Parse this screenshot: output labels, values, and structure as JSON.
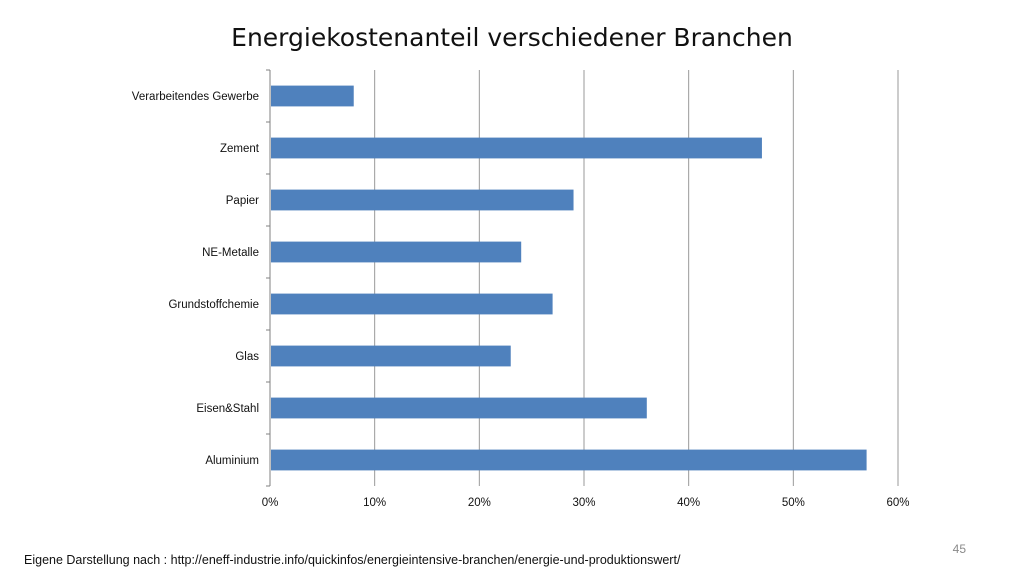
{
  "slide": {
    "source_note": "Eigene Darstellung nach : http://eneff-industrie.info/quickinfos/energieintensive-branchen/energie-und-produktionswert/",
    "page_number": "45"
  },
  "chart_data": {
    "type": "bar",
    "orientation": "horizontal",
    "title": "Energiekostenanteil verschiedener Branchen",
    "categories": [
      "Verarbeitendes Gewerbe",
      "Zement",
      "Papier",
      "NE-Metalle",
      "Grundstoffchemie",
      "Glas",
      "Eisen&Stahl",
      "Aluminium"
    ],
    "values": [
      8,
      47,
      29,
      24,
      27,
      23,
      36,
      57
    ],
    "value_unit": "%",
    "xlim": [
      0,
      60
    ],
    "xticks": [
      "0%",
      "10%",
      "20%",
      "30%",
      "40%",
      "50%",
      "60%"
    ],
    "grid": "vertical",
    "legend": "none",
    "bar_color": "#4f81bd",
    "grid_color": "#9a9a9a"
  }
}
